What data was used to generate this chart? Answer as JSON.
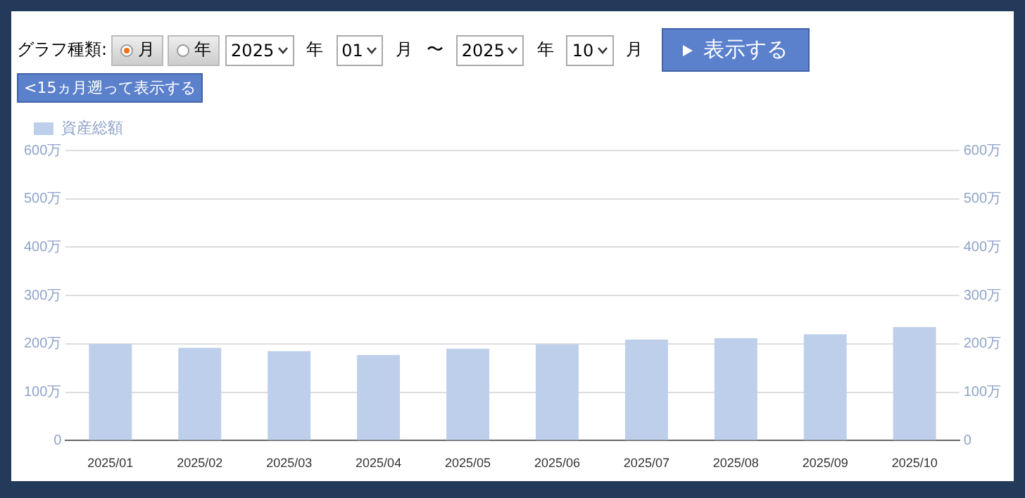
{
  "chart_data": {
    "type": "bar",
    "categories": [
      "2025/01",
      "2025/02",
      "2025/03",
      "2025/04",
      "2025/05",
      "2025/06",
      "2025/07",
      "2025/08",
      "2025/09",
      "2025/10"
    ],
    "series": [
      {
        "name": "資産総額",
        "color": "#bdcfea",
        "values": [
          200,
          192,
          185,
          177,
          190,
          199,
          209,
          212,
          220,
          235
        ]
      }
    ],
    "ylim": [
      0,
      600
    ],
    "yticks": [
      0,
      {
        "value": 100,
        "label": "100万"
      },
      {
        "value": 200,
        "label": "200万"
      },
      {
        "value": 300,
        "label": "300万"
      },
      {
        "value": 400,
        "label": "400万"
      },
      {
        "value": 500,
        "label": "500万"
      },
      {
        "value": 600,
        "label": "600万"
      }
    ],
    "y2lim": [
      0,
      600
    ],
    "y2ticks": [
      0,
      {
        "value": 100,
        "label": "100万"
      },
      {
        "value": 200,
        "label": "200万"
      },
      {
        "value": 300,
        "label": "300万"
      },
      {
        "value": 400,
        "label": "400万"
      },
      {
        "value": 500,
        "label": "500万"
      },
      {
        "value": 600,
        "label": "600万"
      }
    ],
    "grid": "y",
    "legend": "top left",
    "annotations": [
      "グラフ種類:",
      "月",
      "年",
      "2025",
      "年",
      "01",
      "月",
      "〜",
      "2025",
      "年",
      "10",
      "月",
      "表示する",
      "<15ヵ月遡って表示する"
    ]
  }
}
